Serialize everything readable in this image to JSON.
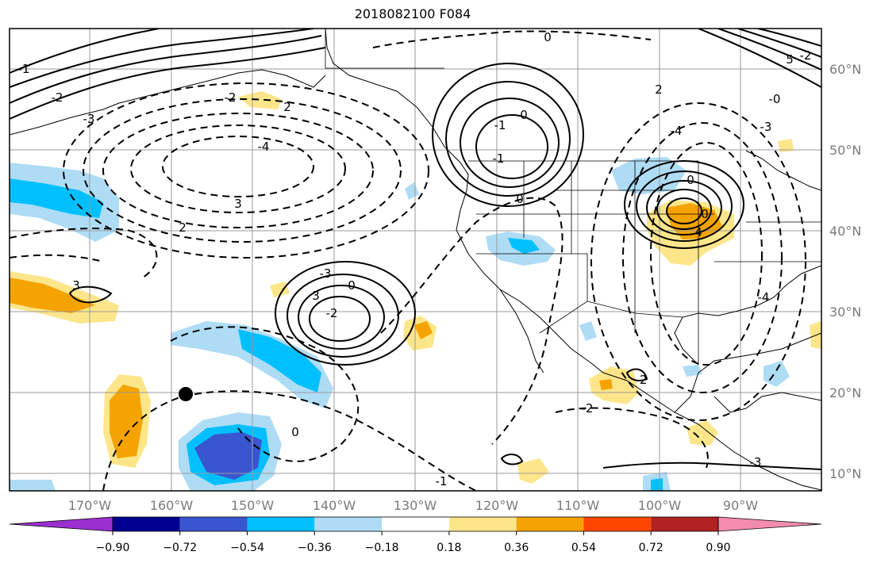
{
  "title": "2018082100 F084",
  "map": {
    "lat_labels": [
      "60°N",
      "50°N",
      "40°N",
      "30°N",
      "20°N",
      "10°N"
    ],
    "lon_labels": [
      "170°W",
      "160°W",
      "150°W",
      "140°W",
      "130°W",
      "120°W",
      "110°W",
      "100°W",
      "90°W"
    ],
    "contour_labels": [
      "0",
      "-1",
      "-2",
      "-3",
      "-4",
      "3",
      "2",
      "-2",
      "2",
      "-3",
      "3",
      "-2",
      "0",
      "-1",
      "0",
      "-1",
      "0",
      "0",
      "0",
      "4",
      "5",
      "-2",
      "-3",
      "-4",
      "2",
      "-0",
      "-2"
    ]
  },
  "colorbar": {
    "tick_labels": [
      "−0.90",
      "−0.72",
      "−0.54",
      "−0.36",
      "−0.18",
      "0.18",
      "0.36",
      "0.54",
      "0.72",
      "0.90"
    ],
    "colors": [
      "#9b30d0",
      "#000090",
      "#3a55d0",
      "#00bfff",
      "#aedcf5",
      "#ffffff",
      "#fde68a",
      "#f5a300",
      "#ff4500",
      "#b22222",
      "#f48cb0"
    ]
  }
}
